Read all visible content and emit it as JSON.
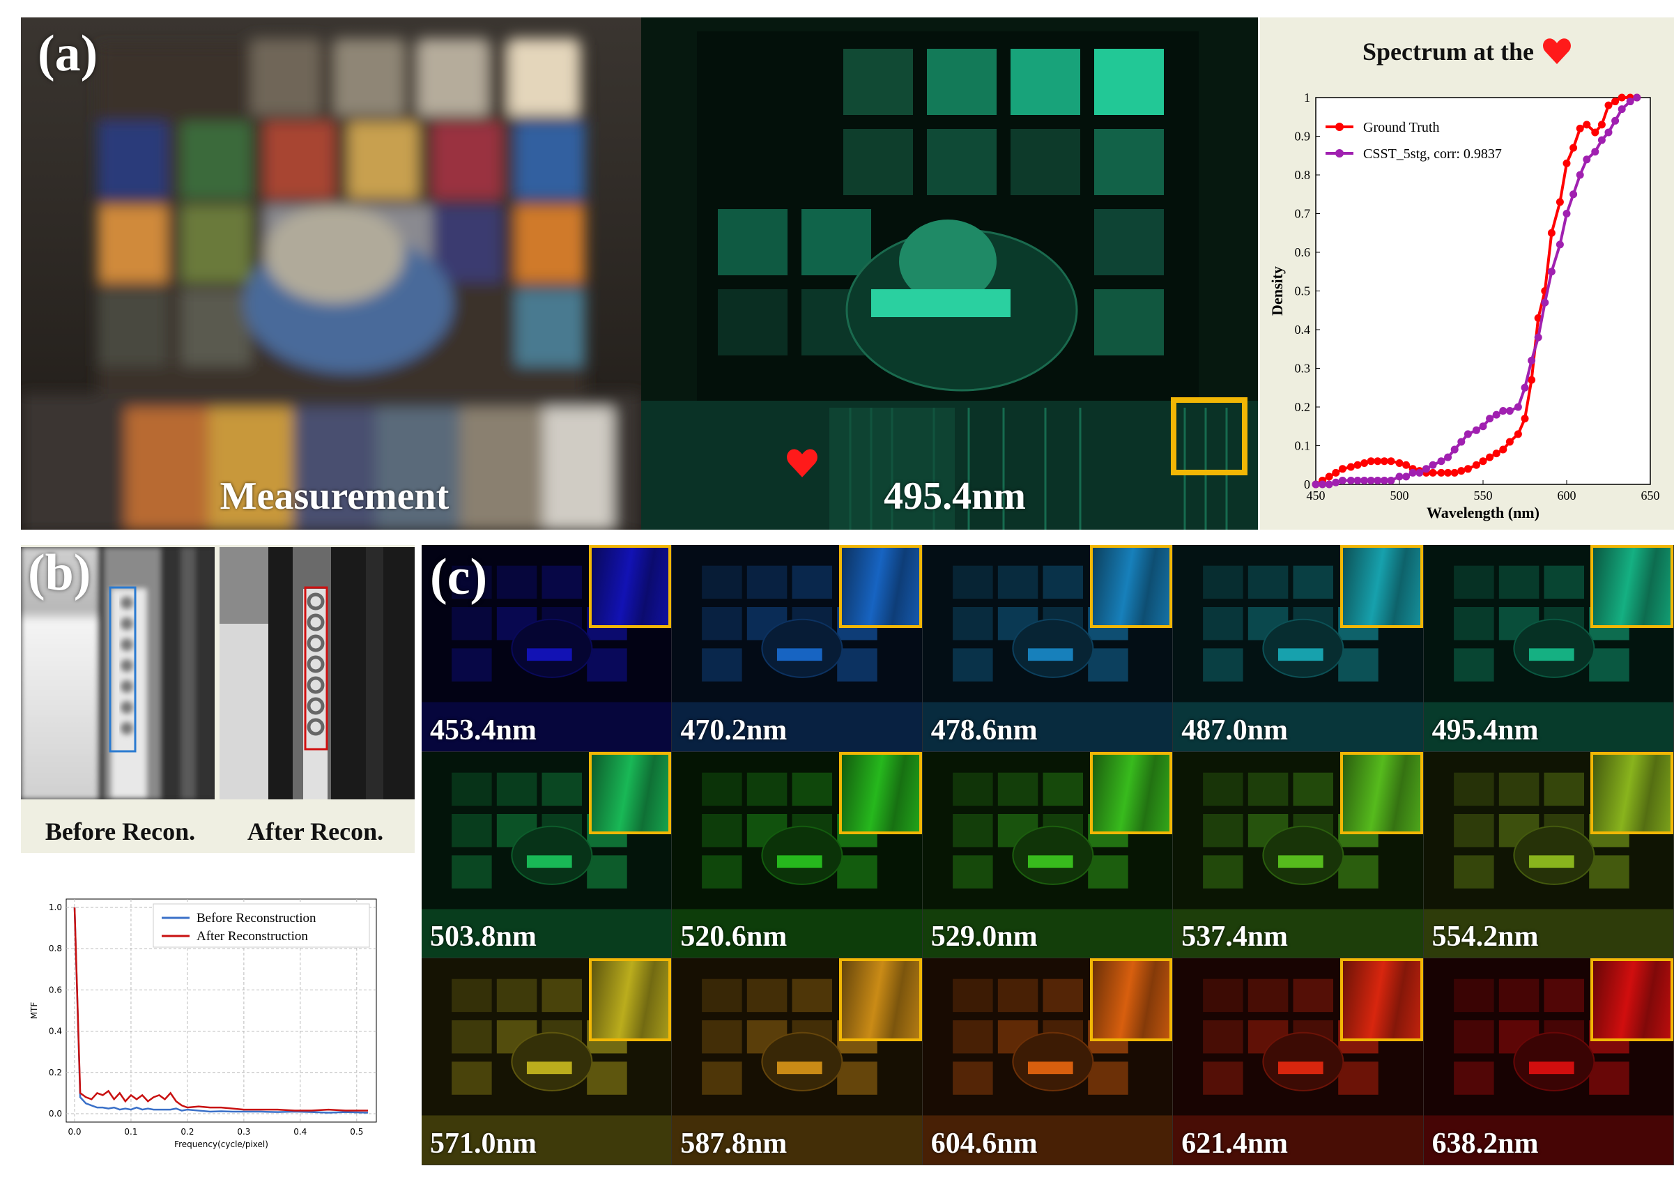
{
  "panels": {
    "a_label": "(a)",
    "b_label": "(b)",
    "c_label": "(c)"
  },
  "panel_a": {
    "measurement_label": "Measurement",
    "recon_wavelength_label": "495.4nm"
  },
  "panel_b": {
    "before_label": "Before Recon.",
    "after_label": "After Recon."
  },
  "panel_c": {
    "tiles": [
      {
        "label": "453.4nm",
        "color": "#1414c8"
      },
      {
        "label": "470.2nm",
        "color": "#1a6fd8"
      },
      {
        "label": "478.6nm",
        "color": "#1a8ed0"
      },
      {
        "label": "487.0nm",
        "color": "#1ab3c0"
      },
      {
        "label": "495.4nm",
        "color": "#17c490"
      },
      {
        "label": "503.8nm",
        "color": "#1ccc60"
      },
      {
        "label": "520.6nm",
        "color": "#2acc20"
      },
      {
        "label": "529.0nm",
        "color": "#3ed020"
      },
      {
        "label": "537.4nm",
        "color": "#60d020"
      },
      {
        "label": "554.2nm",
        "color": "#98c820"
      },
      {
        "label": "571.0nm",
        "color": "#d0c020"
      },
      {
        "label": "587.8nm",
        "color": "#e09a18"
      },
      {
        "label": "604.6nm",
        "color": "#f06a10"
      },
      {
        "label": "621.4nm",
        "color": "#f02a10"
      },
      {
        "label": "638.2nm",
        "color": "#e81010"
      }
    ]
  },
  "colors": {
    "inset_border": "#f2b705",
    "ground_truth": "#ff0000",
    "csst": "#a020b0",
    "mtf_before": "#3a70c8",
    "mtf_after": "#c81010"
  },
  "chart_data": [
    {
      "type": "line",
      "title": "Spectrum at the",
      "title_icon": "heart-icon",
      "xlabel": "Wavelength (nm)",
      "ylabel": "Density",
      "xlim": [
        450,
        650
      ],
      "ylim": [
        0,
        1
      ],
      "xticks": [
        "450",
        "500",
        "550",
        "600",
        "650"
      ],
      "yticks": [
        "0",
        "0.1",
        "0.2",
        "0.3",
        "0.4",
        "0.5",
        "0.6",
        "0.7",
        "0.8",
        "0.9",
        "1"
      ],
      "legend_position": "top-left",
      "series": [
        {
          "name": "Ground Truth",
          "x": [
            450,
            454,
            458,
            462,
            466,
            471,
            475,
            479,
            483,
            487,
            491,
            495,
            500,
            504,
            508,
            512,
            516,
            520,
            525,
            529,
            533,
            537,
            541,
            546,
            550,
            554,
            558,
            562,
            566,
            571,
            575,
            579,
            583,
            587,
            591,
            596,
            600,
            604,
            608,
            612,
            617,
            621,
            625,
            629,
            633,
            638,
            642
          ],
          "y": [
            0.0,
            0.01,
            0.02,
            0.03,
            0.04,
            0.045,
            0.05,
            0.055,
            0.06,
            0.06,
            0.06,
            0.06,
            0.055,
            0.05,
            0.04,
            0.035,
            0.03,
            0.03,
            0.03,
            0.03,
            0.03,
            0.035,
            0.04,
            0.05,
            0.06,
            0.07,
            0.08,
            0.09,
            0.11,
            0.13,
            0.17,
            0.27,
            0.43,
            0.5,
            0.65,
            0.73,
            0.83,
            0.87,
            0.92,
            0.93,
            0.91,
            0.93,
            0.98,
            0.99,
            1.0,
            1.0,
            1.0
          ]
        },
        {
          "name": "CSST_5stg, corr: 0.9837",
          "x": [
            450,
            454,
            458,
            462,
            466,
            471,
            475,
            479,
            483,
            487,
            491,
            495,
            500,
            504,
            508,
            512,
            516,
            520,
            525,
            529,
            533,
            537,
            541,
            546,
            550,
            554,
            558,
            562,
            566,
            571,
            575,
            579,
            583,
            587,
            591,
            596,
            600,
            604,
            608,
            612,
            617,
            621,
            625,
            629,
            633,
            638,
            642
          ],
          "y": [
            0.0,
            0.0,
            0.0,
            0.005,
            0.01,
            0.01,
            0.01,
            0.01,
            0.01,
            0.01,
            0.01,
            0.01,
            0.02,
            0.02,
            0.03,
            0.03,
            0.04,
            0.05,
            0.06,
            0.07,
            0.09,
            0.11,
            0.13,
            0.14,
            0.15,
            0.17,
            0.18,
            0.19,
            0.19,
            0.2,
            0.25,
            0.32,
            0.38,
            0.47,
            0.55,
            0.62,
            0.7,
            0.75,
            0.8,
            0.84,
            0.86,
            0.89,
            0.91,
            0.94,
            0.97,
            0.99,
            1.0
          ]
        }
      ]
    },
    {
      "type": "line",
      "xlabel": "Frequency(cycle/pixel)",
      "ylabel": "MTF",
      "xlim": [
        0,
        0.52
      ],
      "ylim": [
        0,
        1.0
      ],
      "xticks": [
        "0.0",
        "0.1",
        "0.2",
        "0.3",
        "0.4",
        "0.5"
      ],
      "yticks": [
        "0.0",
        "0.2",
        "0.4",
        "0.6",
        "0.8",
        "1.0"
      ],
      "grid": true,
      "legend_position": "top-right",
      "series": [
        {
          "name": "Before Reconstruction",
          "x": [
            0.0,
            0.01,
            0.02,
            0.03,
            0.04,
            0.05,
            0.06,
            0.07,
            0.08,
            0.09,
            0.1,
            0.11,
            0.12,
            0.13,
            0.14,
            0.15,
            0.16,
            0.17,
            0.18,
            0.19,
            0.2,
            0.22,
            0.24,
            0.26,
            0.28,
            0.3,
            0.33,
            0.36,
            0.39,
            0.42,
            0.45,
            0.48,
            0.52
          ],
          "y": [
            1.0,
            0.08,
            0.05,
            0.04,
            0.03,
            0.03,
            0.025,
            0.03,
            0.02,
            0.025,
            0.02,
            0.03,
            0.02,
            0.025,
            0.02,
            0.02,
            0.02,
            0.02,
            0.025,
            0.015,
            0.02,
            0.015,
            0.01,
            0.012,
            0.01,
            0.01,
            0.01,
            0.008,
            0.01,
            0.008,
            0.005,
            0.008,
            0.005
          ]
        },
        {
          "name": "After Reconstruction",
          "x": [
            0.0,
            0.01,
            0.02,
            0.03,
            0.04,
            0.05,
            0.06,
            0.07,
            0.08,
            0.09,
            0.1,
            0.11,
            0.12,
            0.13,
            0.14,
            0.15,
            0.16,
            0.17,
            0.18,
            0.19,
            0.2,
            0.22,
            0.24,
            0.26,
            0.28,
            0.3,
            0.33,
            0.36,
            0.39,
            0.42,
            0.45,
            0.48,
            0.52
          ],
          "y": [
            1.0,
            0.1,
            0.08,
            0.07,
            0.1,
            0.09,
            0.11,
            0.07,
            0.1,
            0.06,
            0.09,
            0.07,
            0.09,
            0.06,
            0.08,
            0.09,
            0.07,
            0.1,
            0.06,
            0.04,
            0.03,
            0.035,
            0.03,
            0.03,
            0.025,
            0.02,
            0.02,
            0.02,
            0.015,
            0.015,
            0.02,
            0.015,
            0.015
          ]
        }
      ]
    }
  ]
}
